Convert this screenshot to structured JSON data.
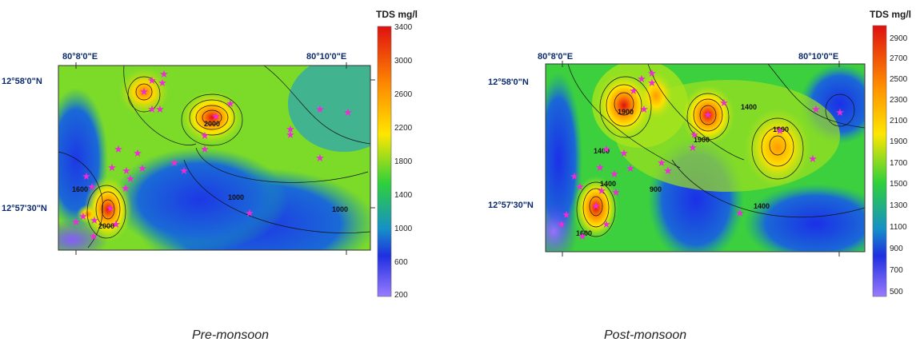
{
  "panels": [
    {
      "id": "pre",
      "caption": "Pre-monsoon",
      "legend_title": "TDS mg/l",
      "colorbar_ticks": [
        "3400",
        "3000",
        "2600",
        "2200",
        "1800",
        "1400",
        "1000",
        "600",
        "200"
      ],
      "lon_labels": [
        "80°8'0\"E",
        "80°10'0\"E"
      ],
      "lat_labels": [
        "12°58'0\"N",
        "12°57'30\"N"
      ],
      "contour_labels": [
        "2000",
        "2000",
        "1000",
        "1000",
        "1600"
      ],
      "colors": {
        "low": "#7a4dff",
        "mid_low": "#1f3fe0",
        "mid": "#22c84a",
        "mid_high": "#ffe600",
        "high": "#e01010"
      }
    },
    {
      "id": "post",
      "caption": "Post-monsoon",
      "legend_title": "TDS mg/l",
      "colorbar_ticks": [
        "2900",
        "2700",
        "2500",
        "2300",
        "2100",
        "1900",
        "1700",
        "1500",
        "1300",
        "1100",
        "900",
        "700",
        "500"
      ],
      "lon_labels": [
        "80°8'0\"E",
        "80°10'0\"E"
      ],
      "lat_labels": [
        "12°58'0\"N",
        "12°57'30\"N"
      ],
      "contour_labels": [
        "1900",
        "1400",
        "1900",
        "1900",
        "1400",
        "900",
        "1400",
        "1600",
        "1400"
      ],
      "colors": {
        "low": "#7a4dff",
        "mid_low": "#1f3fe0",
        "mid": "#22c84a",
        "mid_high": "#ffe600",
        "high": "#e01010"
      }
    }
  ]
}
